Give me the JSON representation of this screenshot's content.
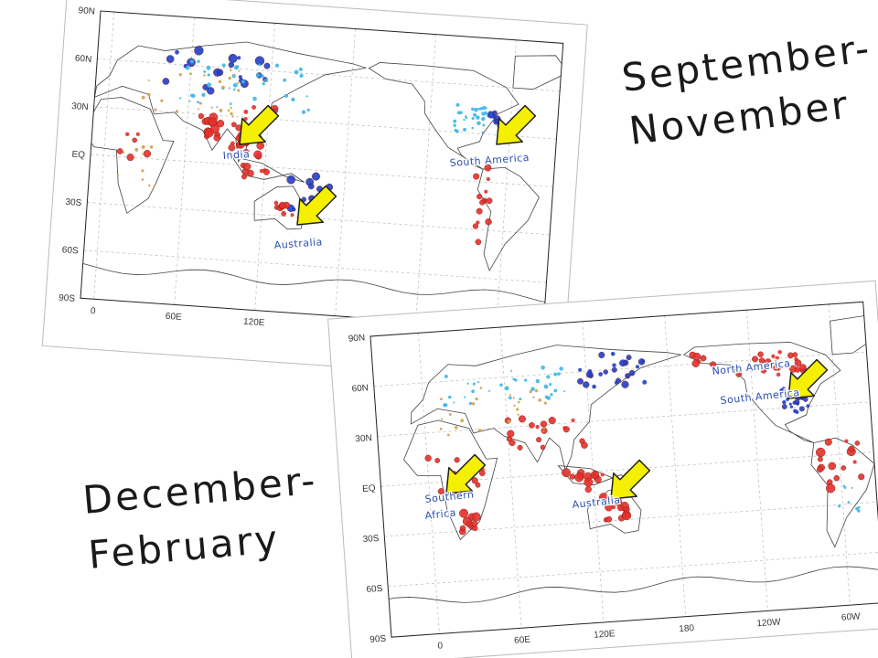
{
  "titles": {
    "top": [
      "September-",
      "November"
    ],
    "bottom": [
      "December-",
      "February"
    ]
  },
  "panels": [
    {
      "lat_labels": [
        "90N",
        "60N",
        "30N",
        "EQ",
        "30S",
        "60S",
        "90S"
      ],
      "lon_labels": [
        "0",
        "60E",
        "120E"
      ],
      "regions": [
        [
          "India"
        ],
        [
          "South America"
        ],
        [
          "Australia"
        ]
      ]
    },
    {
      "lat_labels": [
        "90N",
        "60N",
        "30N",
        "EQ",
        "30S",
        "60S",
        "90S"
      ],
      "lon_labels": [
        "0",
        "60E",
        "120E",
        "180",
        "120W",
        "60W"
      ],
      "regions": [
        [
          "North America"
        ],
        [
          "South America"
        ],
        [
          "Southern",
          "Africa"
        ],
        [
          "Australia"
        ]
      ]
    }
  ]
}
